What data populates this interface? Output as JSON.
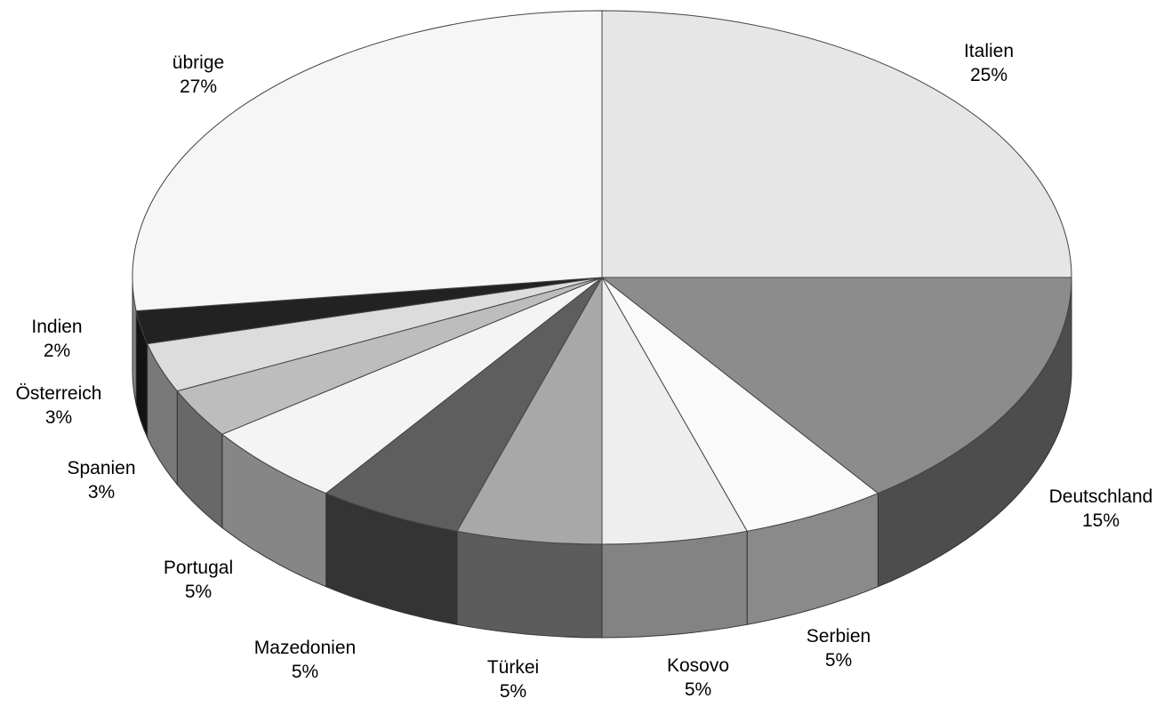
{
  "chart_data": {
    "type": "pie",
    "title": "",
    "style": "3d-exploded-none",
    "slices": [
      {
        "label": "Italien",
        "value": 25,
        "value_label": "25%",
        "color": "#e6e6e6"
      },
      {
        "label": "Deutschland",
        "value": 15,
        "value_label": "15%",
        "color": "#8c8c8c"
      },
      {
        "label": "Serbien",
        "value": 5,
        "value_label": "5%",
        "color": "#fafafa"
      },
      {
        "label": "Kosovo",
        "value": 5,
        "value_label": "5%",
        "color": "#eeeeee"
      },
      {
        "label": "Türkei",
        "value": 5,
        "value_label": "5%",
        "color": "#a8a8a8"
      },
      {
        "label": "Mazedonien",
        "value": 5,
        "value_label": "5%",
        "color": "#5e5e5e"
      },
      {
        "label": "Portugal",
        "value": 5,
        "value_label": "5%",
        "color": "#f4f4f4"
      },
      {
        "label": "Spanien",
        "value": 3,
        "value_label": "3%",
        "color": "#bdbdbd"
      },
      {
        "label": "Österreich",
        "value": 3,
        "value_label": "3%",
        "color": "#dcdcdc"
      },
      {
        "label": "Indien",
        "value": 2,
        "value_label": "2%",
        "color": "#222222"
      },
      {
        "label": "übrige",
        "value": 27,
        "value_label": "27%",
        "color": "#f6f6f6"
      }
    ]
  }
}
